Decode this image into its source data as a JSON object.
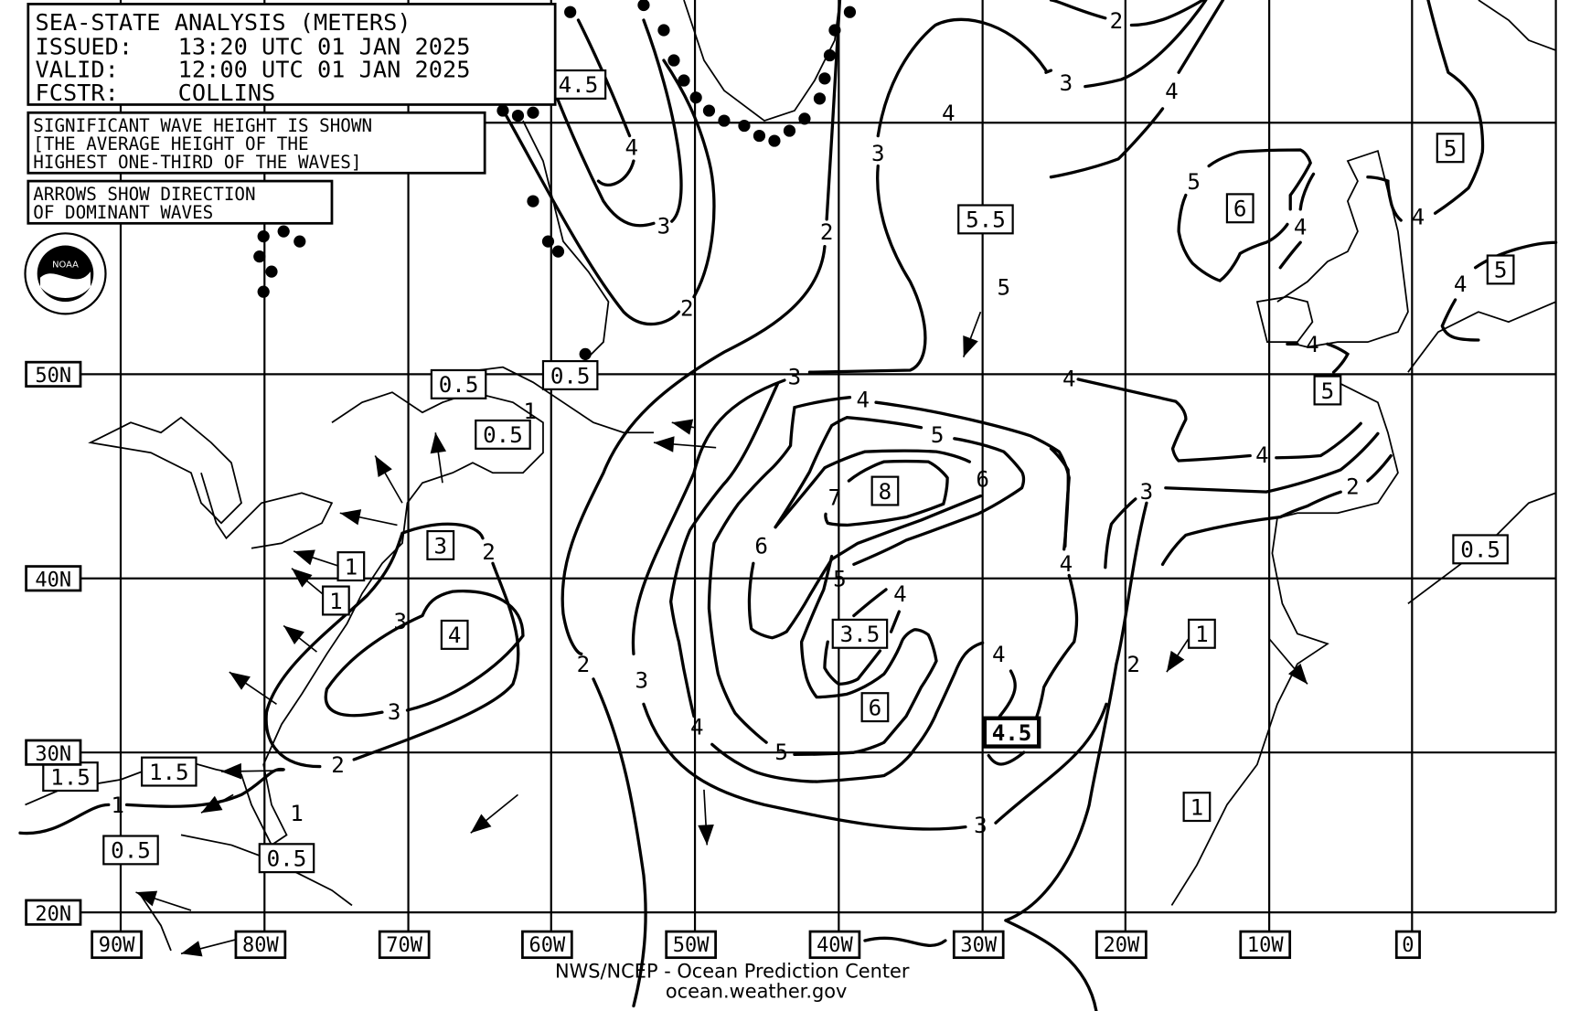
{
  "header": {
    "title": "SEA-STATE ANALYSIS (METERS)",
    "issued_label": "ISSUED:",
    "issued_value": "13:20 UTC 01 JAN 2025",
    "valid_label": "VALID:",
    "valid_value": "12:00 UTC 01 JAN 2025",
    "forecaster_label": "FCSTR:",
    "forecaster_value": "COLLINS"
  },
  "notes": {
    "wave_height": [
      "SIGNIFICANT WAVE HEIGHT IS SHOWN",
      "[THE AVERAGE HEIGHT OF THE",
      "HIGHEST ONE-THIRD OF THE WAVES]"
    ],
    "arrows": [
      "ARROWS SHOW DIRECTION",
      "OF DOMINANT WAVES"
    ]
  },
  "logo": {
    "text": "NOAA",
    "ring_text": "NATIONAL OCEANIC AND ATMOSPHERIC ADMINISTRATION U.S. DEPARTMENT OF COMMERCE"
  },
  "latitude_labels": [
    "50N",
    "40N",
    "30N",
    "20N"
  ],
  "longitude_labels": [
    "90W",
    "80W",
    "70W",
    "60W",
    "50W",
    "40W",
    "30W",
    "20W",
    "10W",
    "0"
  ],
  "footer": {
    "line1": "NWS/NCEP - Ocean Prediction Center",
    "line2": "ocean.weather.gov"
  },
  "boxed_values": [
    "4.5",
    "0.5",
    "0.5",
    "0.5",
    "3",
    "4",
    "1",
    "1",
    "1.5",
    "1.5",
    "0.5",
    "0.5",
    "8",
    "3.5",
    "6",
    "4.5",
    "5.5",
    "6",
    "5",
    "5",
    "5",
    "0.5",
    "1",
    "1"
  ],
  "contour_labels": [
    "2",
    "3",
    "4",
    "4",
    "3",
    "4",
    "3",
    "2",
    "2",
    "5",
    "5",
    "4",
    "4",
    "4",
    "4",
    "4",
    "3",
    "4",
    "5",
    "6",
    "7",
    "6",
    "5",
    "4",
    "4",
    "4",
    "4",
    "3",
    "2",
    "2",
    "3",
    "3",
    "2",
    "1",
    "1",
    "1",
    "2",
    "3",
    "4",
    "5",
    "3",
    "2"
  ],
  "colors": {
    "ink": "#000000",
    "background": "#ffffff"
  }
}
